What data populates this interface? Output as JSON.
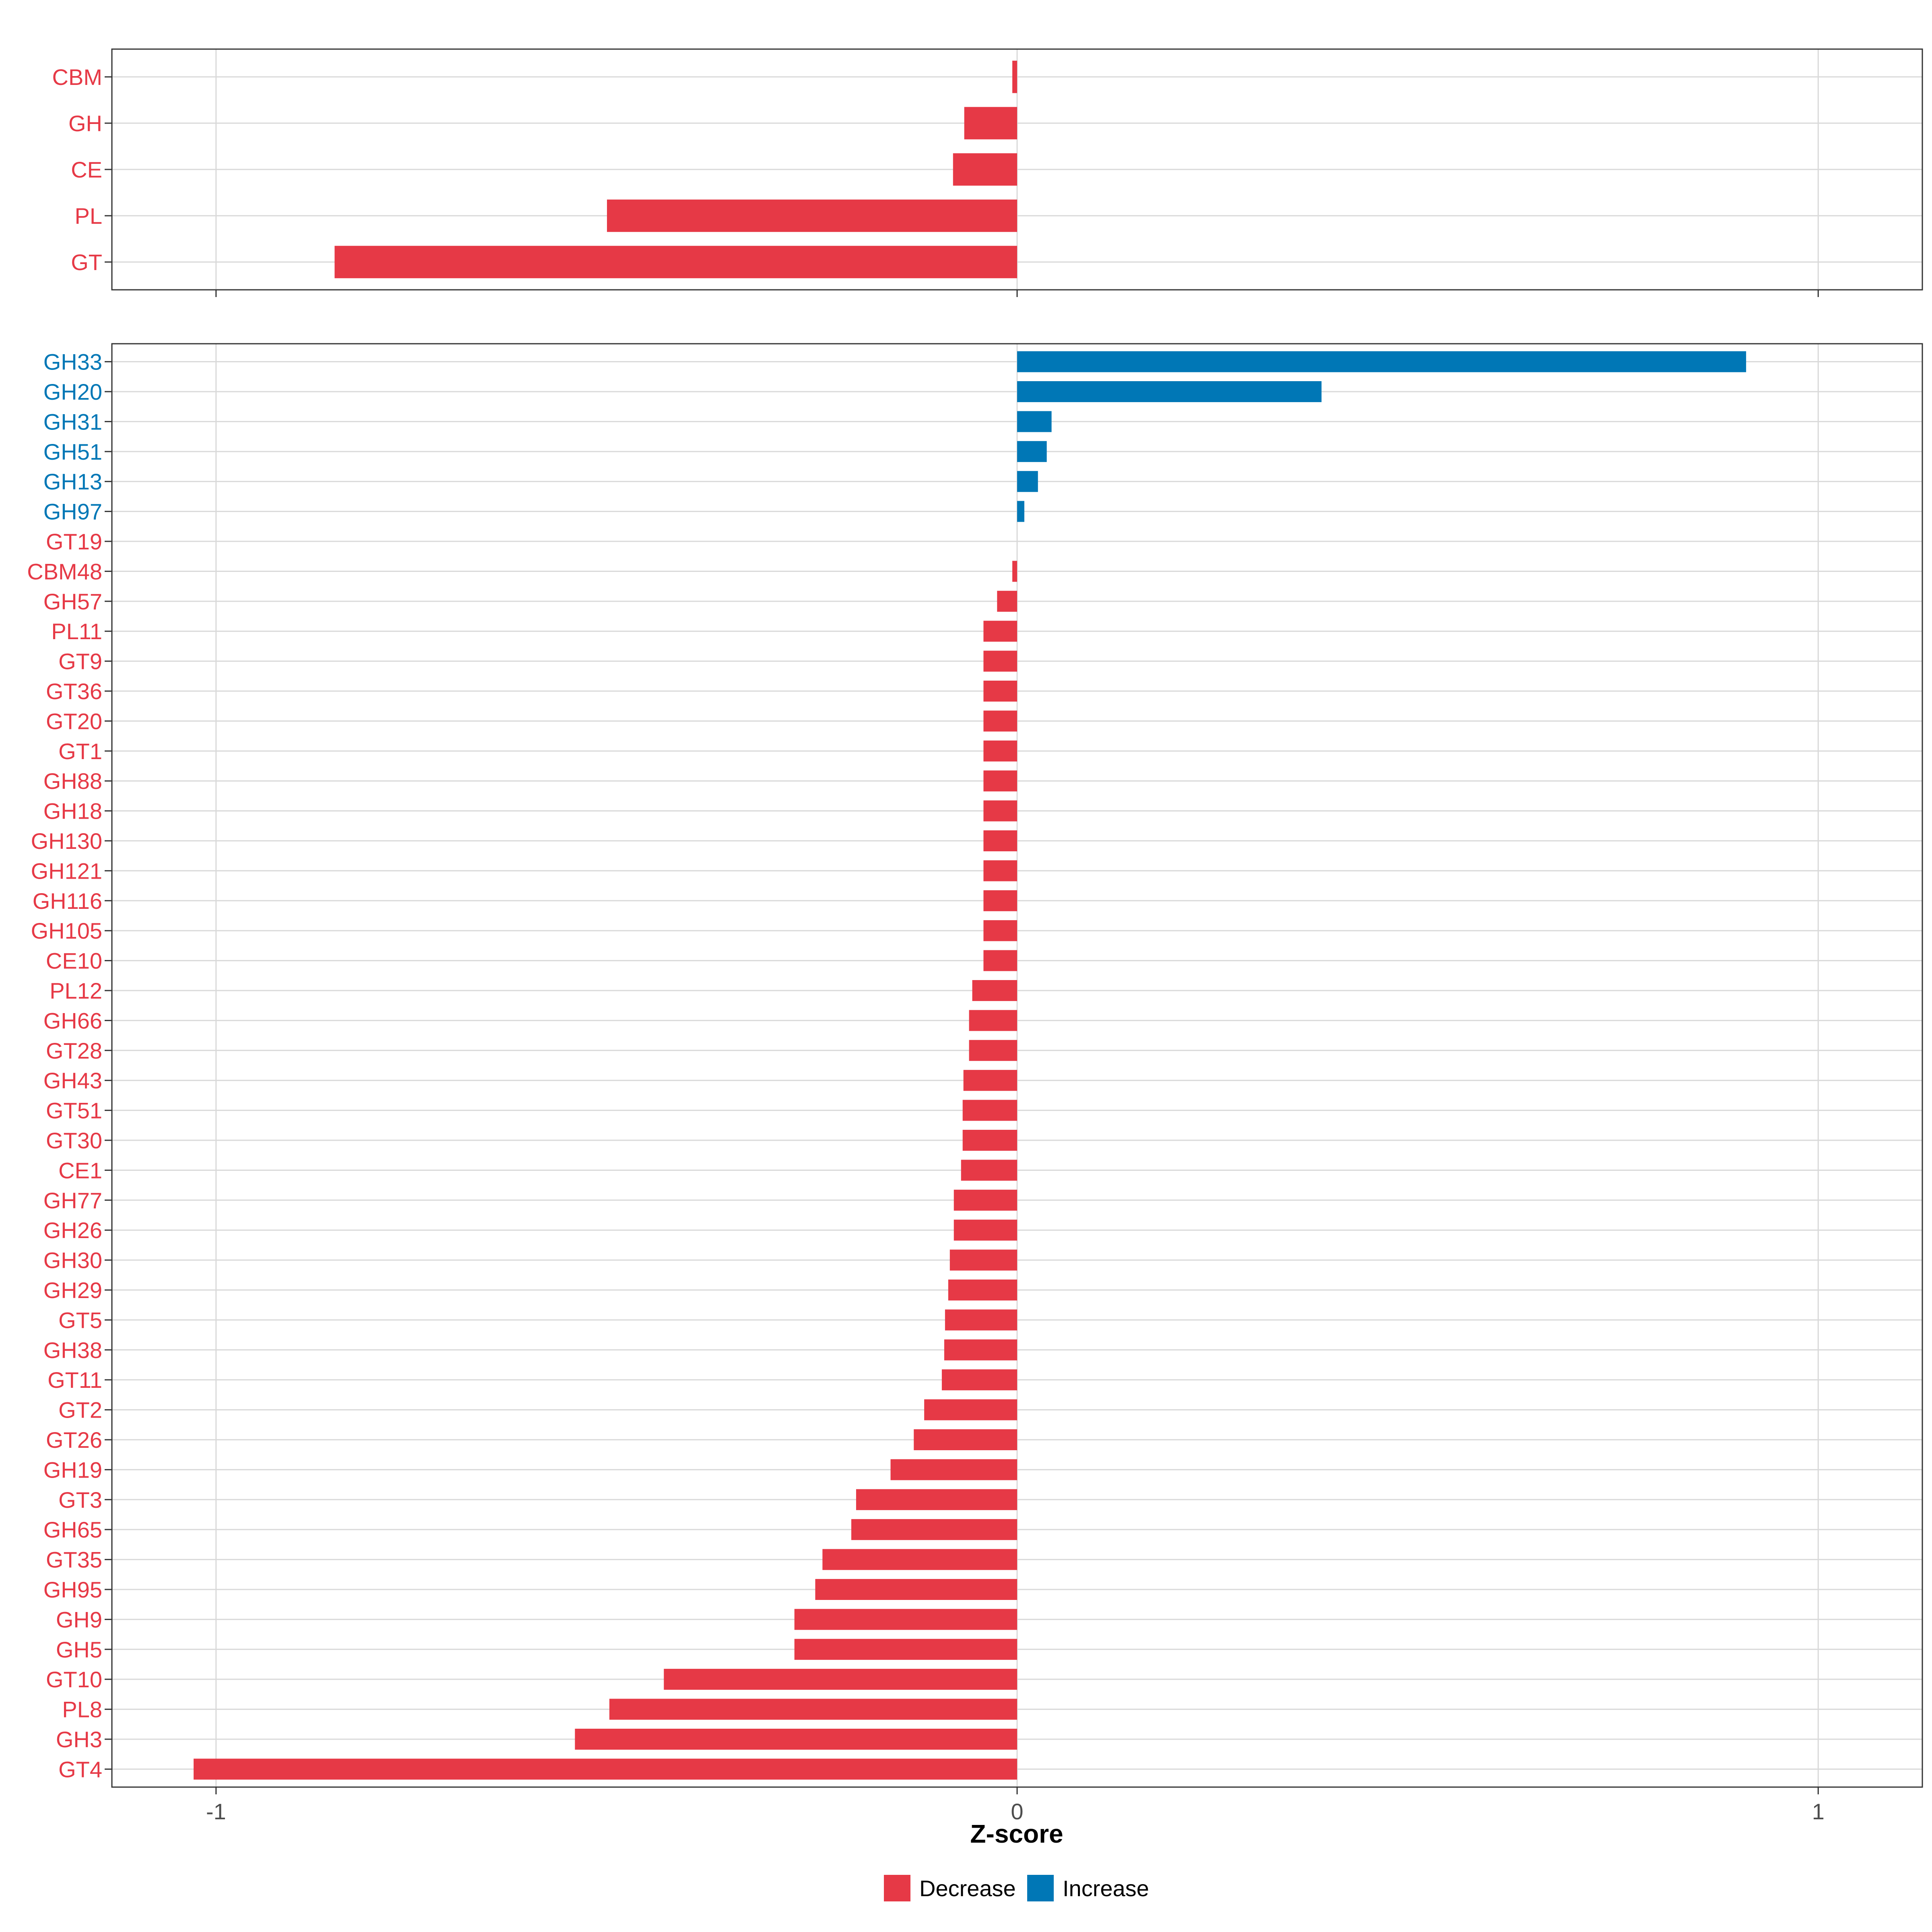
{
  "colors": {
    "decrease": "#E63946",
    "increase": "#0077B6",
    "grid": "#d9d9d9",
    "border": "#333333"
  },
  "chart_data": [
    {
      "type": "bar",
      "orientation": "horizontal",
      "panel": "top",
      "categories": [
        "CBM",
        "GH",
        "CE",
        "PL",
        "GT"
      ],
      "values": [
        -0.006,
        -0.066,
        -0.08,
        -0.512,
        -0.852
      ],
      "direction": [
        "Decrease",
        "Decrease",
        "Decrease",
        "Decrease",
        "Decrease"
      ],
      "xlim": [
        -1.13,
        1.13
      ],
      "xticks": [
        -1,
        0,
        1
      ],
      "xticklabels": [
        "",
        "",
        ""
      ],
      "grid": true
    },
    {
      "type": "bar",
      "orientation": "horizontal",
      "panel": "bottom",
      "categories": [
        "GH33",
        "GH20",
        "GH31",
        "GH51",
        "GH13",
        "GH97",
        "GT19",
        "CBM48",
        "GH57",
        "PL11",
        "GT9",
        "GT36",
        "GT20",
        "GT1",
        "GH88",
        "GH18",
        "GH130",
        "GH121",
        "GH116",
        "GH105",
        "CE10",
        "PL12",
        "GH66",
        "GT28",
        "GH43",
        "GT51",
        "GT30",
        "CE1",
        "GH77",
        "GH26",
        "GH30",
        "GH29",
        "GT5",
        "GH38",
        "GT11",
        "GT2",
        "GT26",
        "GH19",
        "GT3",
        "GH65",
        "GT35",
        "GH95",
        "GH9",
        "GH5",
        "GT10",
        "PL8",
        "GH3",
        "GT4"
      ],
      "values": [
        0.91,
        0.38,
        0.043,
        0.037,
        0.026,
        0.009,
        0.0,
        -0.006,
        -0.025,
        -0.042,
        -0.042,
        -0.042,
        -0.042,
        -0.042,
        -0.042,
        -0.042,
        -0.042,
        -0.042,
        -0.042,
        -0.042,
        -0.042,
        -0.056,
        -0.06,
        -0.06,
        -0.067,
        -0.068,
        -0.068,
        -0.07,
        -0.079,
        -0.079,
        -0.084,
        -0.086,
        -0.09,
        -0.091,
        -0.094,
        -0.116,
        -0.129,
        -0.158,
        -0.201,
        -0.207,
        -0.243,
        -0.252,
        -0.278,
        -0.278,
        -0.441,
        -0.509,
        -0.552,
        -1.028
      ],
      "direction": [
        "Increase",
        "Increase",
        "Increase",
        "Increase",
        "Increase",
        "Increase",
        "Decrease",
        "Decrease",
        "Decrease",
        "Decrease",
        "Decrease",
        "Decrease",
        "Decrease",
        "Decrease",
        "Decrease",
        "Decrease",
        "Decrease",
        "Decrease",
        "Decrease",
        "Decrease",
        "Decrease",
        "Decrease",
        "Decrease",
        "Decrease",
        "Decrease",
        "Decrease",
        "Decrease",
        "Decrease",
        "Decrease",
        "Decrease",
        "Decrease",
        "Decrease",
        "Decrease",
        "Decrease",
        "Decrease",
        "Decrease",
        "Decrease",
        "Decrease",
        "Decrease",
        "Decrease",
        "Decrease",
        "Decrease",
        "Decrease",
        "Decrease",
        "Decrease",
        "Decrease",
        "Decrease",
        "Decrease"
      ],
      "xlim": [
        -1.13,
        1.13
      ],
      "xticks": [
        -1,
        0,
        1
      ],
      "xticklabels": [
        "-1",
        "0",
        "1"
      ],
      "xlabel": "Z-score",
      "grid": true
    }
  ],
  "legend": {
    "position": "bottom",
    "items": [
      {
        "label": "Decrease",
        "color": "#E63946"
      },
      {
        "label": "Increase",
        "color": "#0077B6"
      }
    ]
  }
}
